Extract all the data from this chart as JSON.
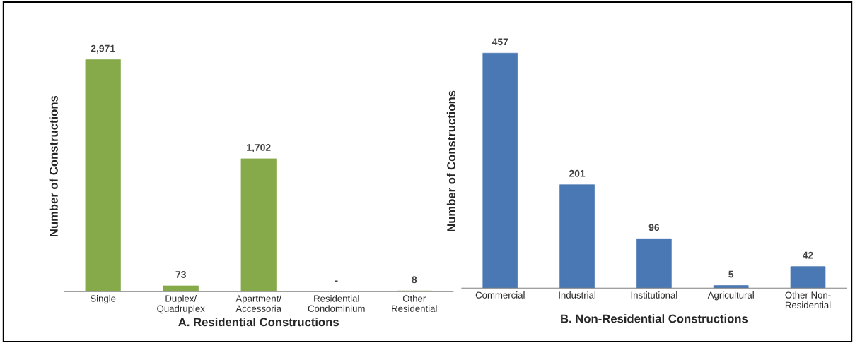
{
  "chart_data": [
    {
      "type": "bar",
      "xlabel": "A. Residential Constructions",
      "ylabel": "Number of Constructions",
      "categories": [
        "Single",
        "Duplex/\nQuadruplex",
        "Apartment/\nAccessoria",
        "Residential\nCondominium",
        "Other\nResidential"
      ],
      "values": [
        2971,
        73,
        1702,
        0,
        8
      ],
      "value_labels": [
        "2,971",
        "73",
        "1,702",
        "-",
        "8"
      ],
      "color": "#86a94a",
      "tick_labels": "x",
      "grid": false,
      "legend": false
    },
    {
      "type": "bar",
      "xlabel": "B. Non-Residential Constructions",
      "ylabel": "Number of Constructions",
      "categories": [
        "Commercial",
        "Industrial",
        "Institutional",
        "Agricultural",
        "Other Non-\nResidential"
      ],
      "values": [
        457,
        201,
        96,
        5,
        42
      ],
      "value_labels": [
        "457",
        "201",
        "96",
        "5",
        "42"
      ],
      "color": "#4a78b4",
      "tick_labels": "x",
      "grid": false,
      "legend": false
    }
  ]
}
